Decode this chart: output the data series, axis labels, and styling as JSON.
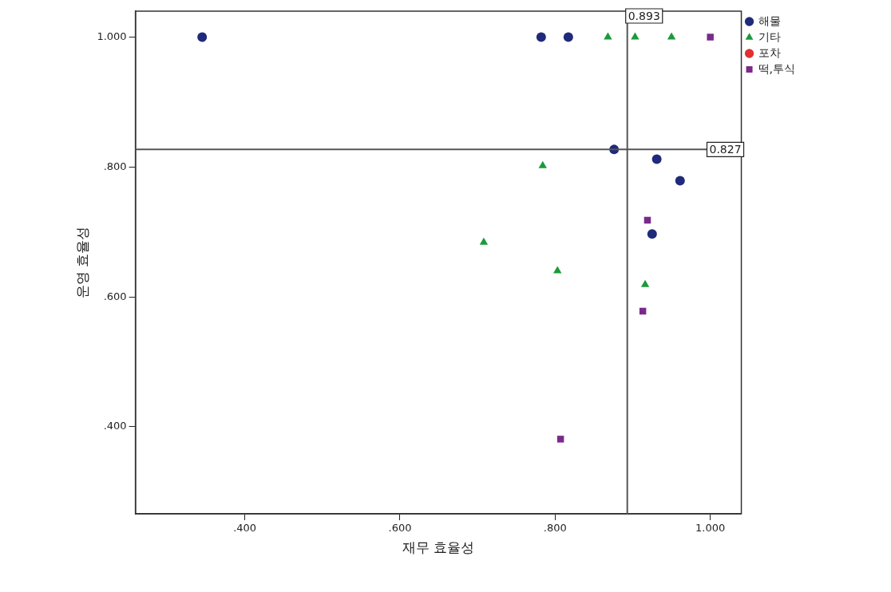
{
  "chart_data": {
    "type": "scatter",
    "xlabel": "재무 효율성",
    "ylabel": "운영 효율성",
    "xlim": [
      0.259,
      1.04
    ],
    "ylim": [
      0.266,
      1.04
    ],
    "xticks": [
      {
        "value": 0.4,
        "label": ".400"
      },
      {
        "value": 0.6,
        "label": ".600"
      },
      {
        "value": 0.8,
        "label": ".800"
      },
      {
        "value": 1.0,
        "label": "1.000"
      }
    ],
    "yticks": [
      {
        "value": 0.4,
        "label": ".400"
      },
      {
        "value": 0.6,
        "label": ".600"
      },
      {
        "value": 0.8,
        "label": ".800"
      },
      {
        "value": 1.0,
        "label": "1.000"
      }
    ],
    "grid": false,
    "legend": "top right",
    "series": [
      {
        "name": "해물",
        "color": "#1f2a7a",
        "marker": "circle",
        "x": [
          0.345,
          0.782,
          0.817,
          0.876,
          0.931,
          0.961,
          0.925
        ],
        "values": [
          1.0,
          1.0,
          1.0,
          0.827,
          0.812,
          0.779,
          0.697
        ]
      },
      {
        "name": "기타",
        "color": "#1a9a3a",
        "marker": "triangle",
        "x": [
          0.868,
          0.903,
          0.95,
          0.784,
          0.708,
          0.803,
          0.916
        ],
        "values": [
          1.0,
          1.0,
          1.0,
          0.802,
          0.684,
          0.64,
          0.619
        ]
      },
      {
        "name": "포차",
        "color": "#e03030",
        "marker": "circle"
      },
      {
        "name": "떡,투식",
        "color": "#7a2a8a",
        "marker": "square",
        "x": [
          1.0,
          0.919,
          0.913,
          0.807
        ],
        "values": [
          1.0,
          0.718,
          0.578,
          0.381
        ]
      }
    ],
    "ref_lines": [
      {
        "axis": "x",
        "value": 0.893,
        "label": "0.893"
      },
      {
        "axis": "y",
        "value": 0.827,
        "label": "0.827"
      }
    ]
  }
}
